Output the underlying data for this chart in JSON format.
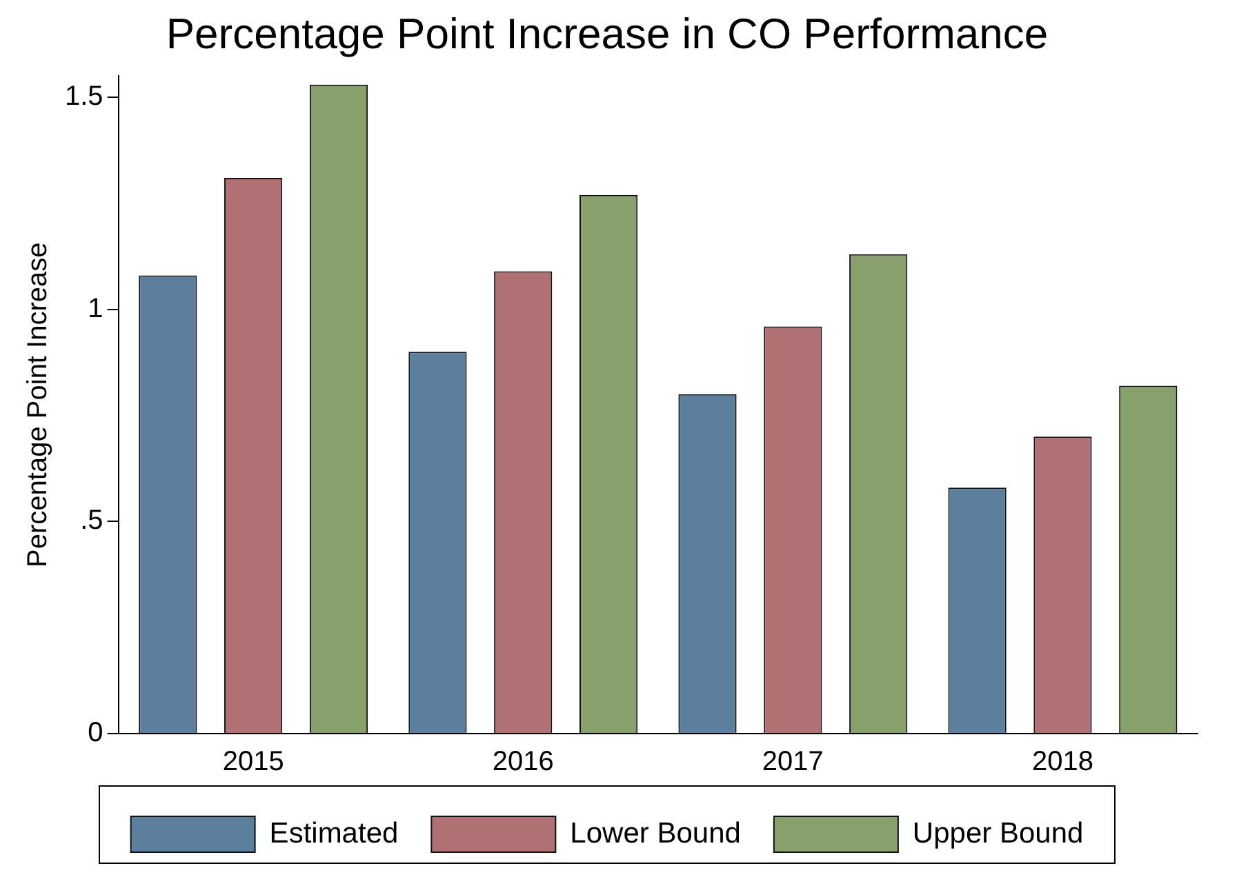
{
  "chart_data": {
    "type": "bar",
    "title": "Percentage Point Increase in CO Performance",
    "ylabel": "Percentage Point Increase",
    "categories": [
      "2015",
      "2016",
      "2017",
      "2018"
    ],
    "series": [
      {
        "name": "Estimated",
        "color": "#5b7f9c",
        "values": [
          1.08,
          0.9,
          0.8,
          0.58
        ]
      },
      {
        "name": "Lower Bound",
        "color": "#b07174",
        "values": [
          1.31,
          1.09,
          0.96,
          0.7
        ]
      },
      {
        "name": "Upper Bound",
        "color": "#88a06c",
        "values": [
          1.53,
          1.27,
          1.13,
          0.82
        ]
      }
    ],
    "ylim": [
      0,
      1.55
    ],
    "yticks": [
      0,
      {
        "value": 0.5,
        "label": ".5"
      },
      1,
      1.5
    ],
    "grid": false,
    "legend": "bottom"
  }
}
